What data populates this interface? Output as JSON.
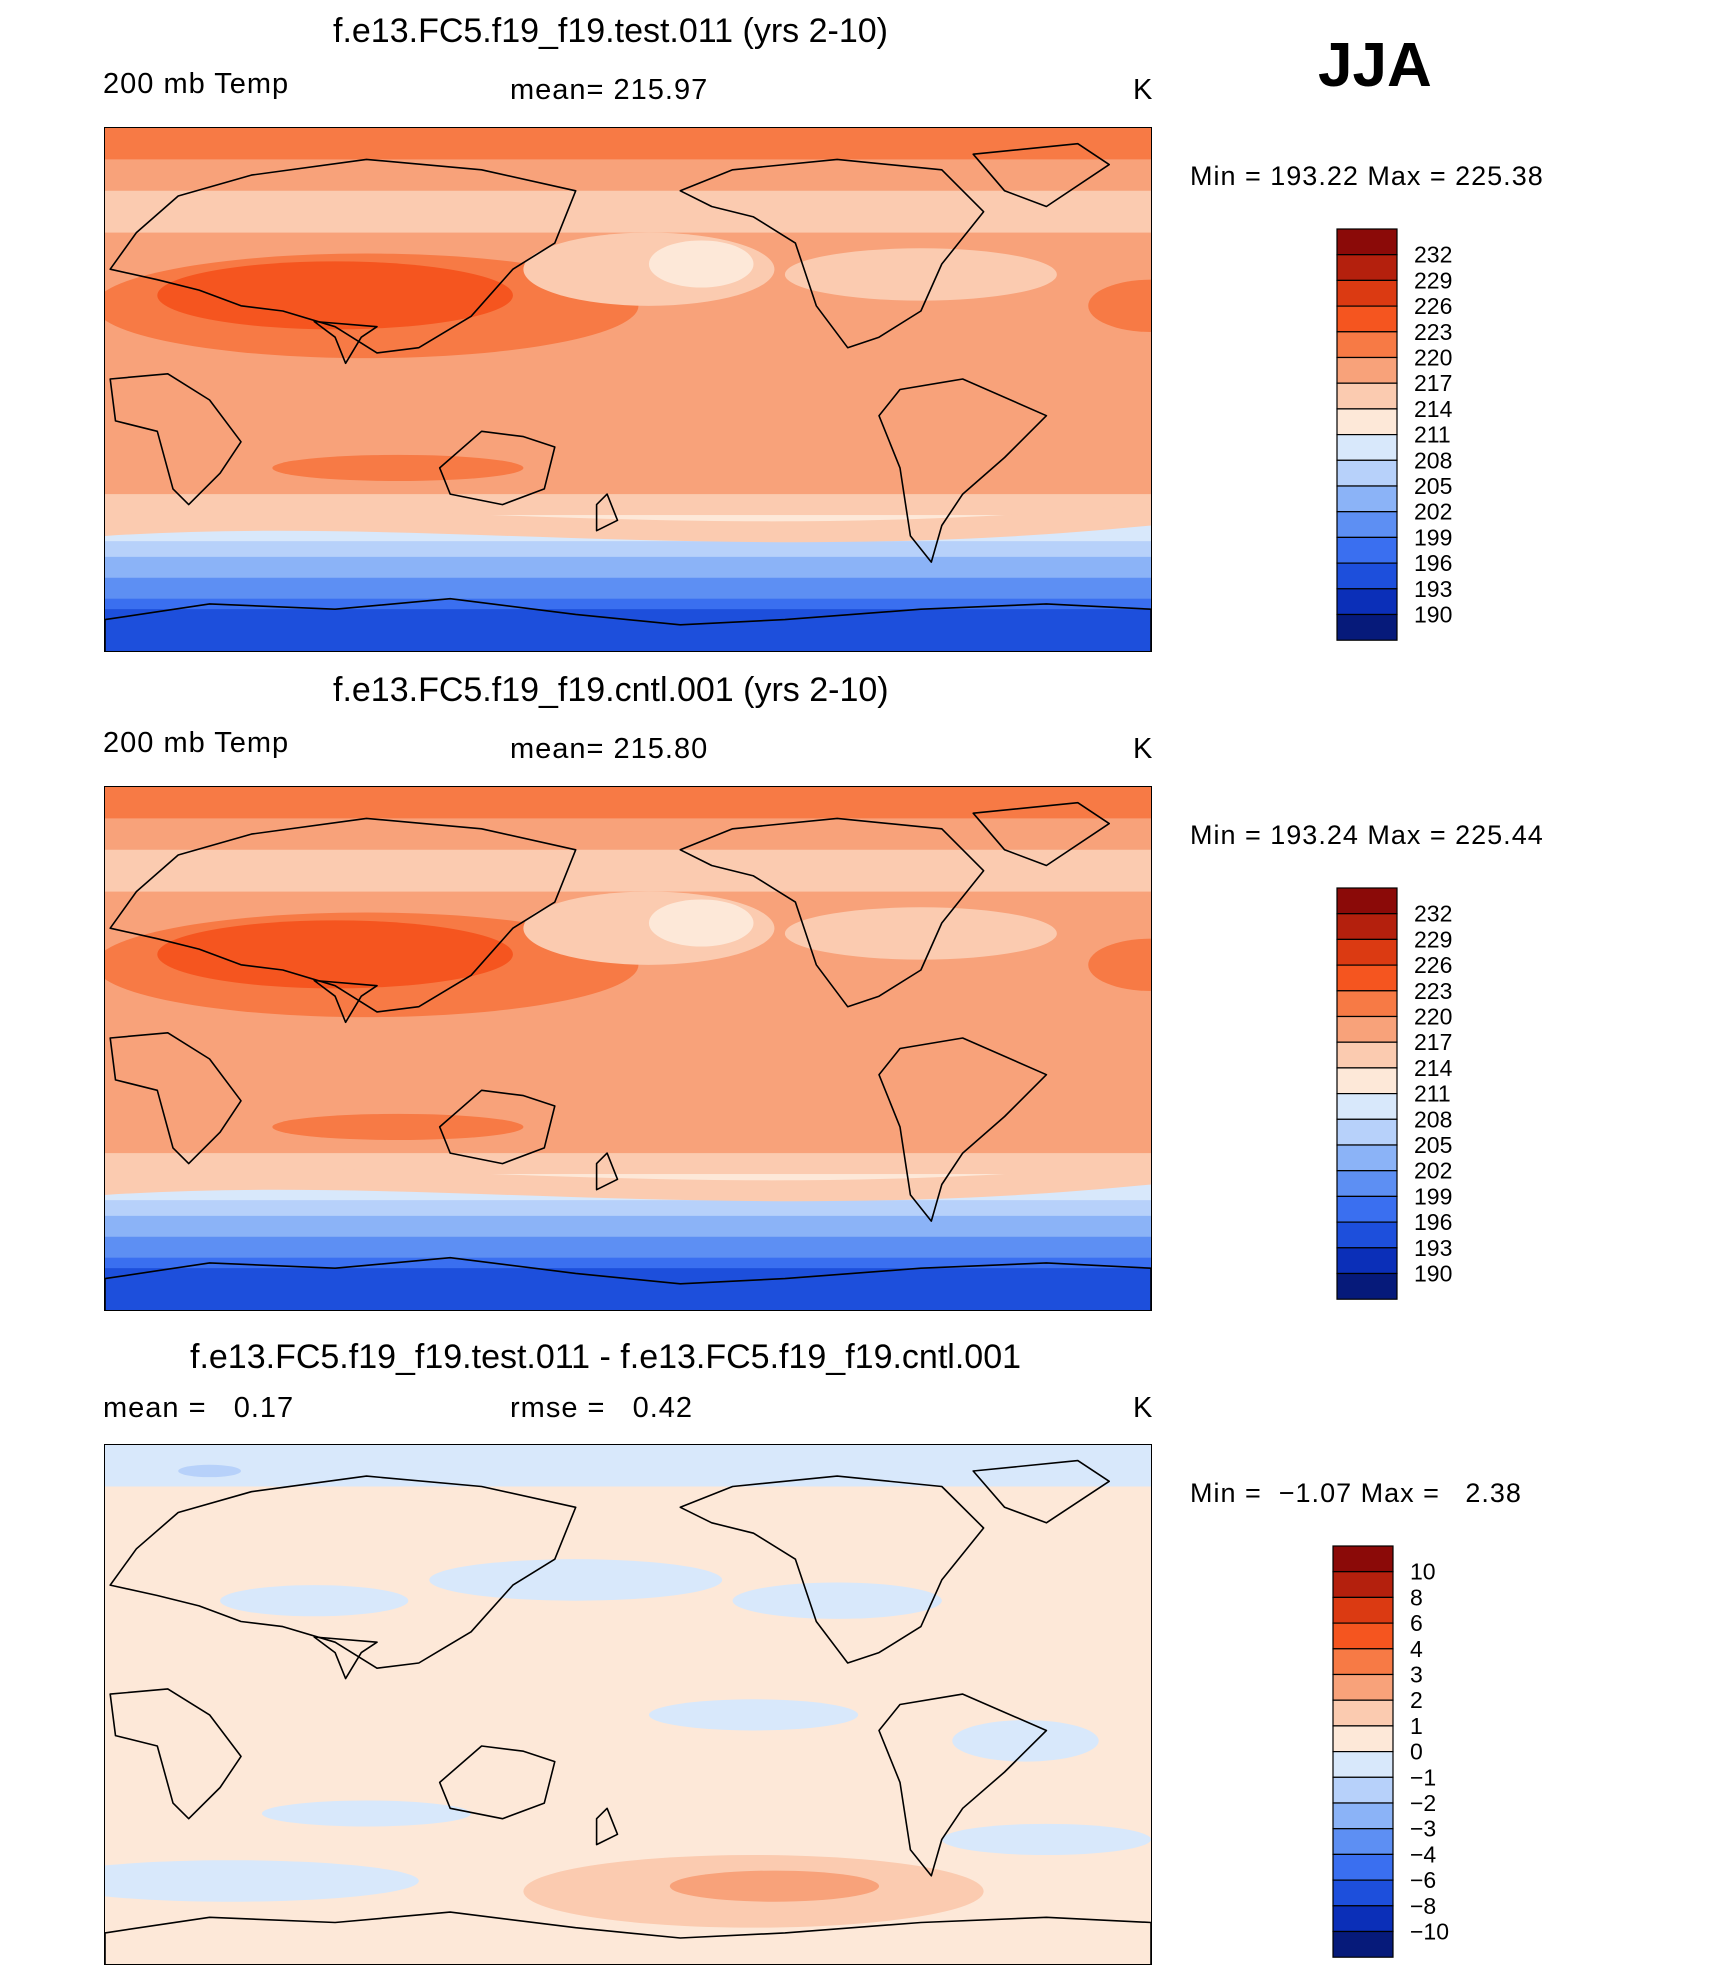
{
  "season": "JJA",
  "panels": [
    {
      "title": "f.e13.FC5.f19_f19.test.011 (yrs 2-10)",
      "sub_left": "200 mb Temp",
      "sub_mid": "mean= 215.97",
      "sub_right": "K",
      "minmax": "Min = 193.22 Max = 225.38",
      "colorbar": {
        "levels": [
          "232",
          "229",
          "226",
          "223",
          "220",
          "217",
          "214",
          "211",
          "208",
          "205",
          "202",
          "199",
          "196",
          "193",
          "190"
        ],
        "colors": [
          "#8b0a08",
          "#b4200d",
          "#db3a12",
          "#f5551f",
          "#f77a45",
          "#f8a27a",
          "#fbcbb0",
          "#fde8d8",
          "#d8e8fb",
          "#b7d1fa",
          "#8bb3f7",
          "#5d8ff3",
          "#3a6ff0",
          "#1d4fdc",
          "#0b2fb8",
          "#061a7a"
        ]
      },
      "field": "test"
    },
    {
      "title": "f.e13.FC5.f19_f19.cntl.001 (yrs 2-10)",
      "sub_left": "200 mb Temp",
      "sub_mid": "mean= 215.80",
      "sub_right": "K",
      "minmax": "Min = 193.24 Max = 225.44",
      "colorbar": {
        "levels": [
          "232",
          "229",
          "226",
          "223",
          "220",
          "217",
          "214",
          "211",
          "208",
          "205",
          "202",
          "199",
          "196",
          "193",
          "190"
        ],
        "colors": [
          "#8b0a08",
          "#b4200d",
          "#db3a12",
          "#f5551f",
          "#f77a45",
          "#f8a27a",
          "#fbcbb0",
          "#fde8d8",
          "#d8e8fb",
          "#b7d1fa",
          "#8bb3f7",
          "#5d8ff3",
          "#3a6ff0",
          "#1d4fdc",
          "#0b2fb8",
          "#061a7a"
        ]
      },
      "field": "cntl"
    },
    {
      "title": "f.e13.FC5.f19_f19.test.011 - f.e13.FC5.f19_f19.cntl.001",
      "sub_left": "mean =   0.17",
      "sub_mid": "rmse =   0.42",
      "sub_right": "K",
      "minmax": "Min =  −1.07 Max =   2.38",
      "colorbar": {
        "levels": [
          "10",
          "8",
          "6",
          "4",
          "3",
          "2",
          "1",
          "0",
          "−1",
          "−2",
          "−3",
          "−4",
          "−6",
          "−8",
          "−10"
        ],
        "colors": [
          "#8b0a08",
          "#b4200d",
          "#db3a12",
          "#f5551f",
          "#f77a45",
          "#f8a27a",
          "#fbcbb0",
          "#fde8d8",
          "#d8e8fb",
          "#b7d1fa",
          "#8bb3f7",
          "#5d8ff3",
          "#3a6ff0",
          "#1d4fdc",
          "#0b2fb8",
          "#061a7a"
        ]
      },
      "field": "diff"
    }
  ]
}
